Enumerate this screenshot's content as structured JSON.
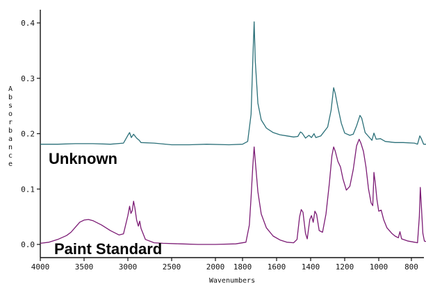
{
  "chart_data": {
    "type": "line",
    "xlabel": "Wavenumbers",
    "ylabel": "Absorbance",
    "xlim": [
      4000,
      700
    ],
    "ylim": [
      -0.03,
      0.43
    ],
    "x_ticks": [
      4000,
      3500,
      3000,
      2500,
      2000,
      1800,
      1600,
      1400,
      1200,
      1000,
      800
    ],
    "x_tick_labels": [
      "4000",
      "3500",
      "3000",
      "2500",
      "2000",
      "1800",
      "1600",
      "1400",
      "1200",
      "1000",
      "800"
    ],
    "y_ticks": [
      0.0,
      0.1,
      0.2,
      0.3,
      0.4
    ],
    "y_tick_labels": [
      "0.0",
      "0.1",
      "0.2",
      "0.3",
      "0.4"
    ],
    "grid": false,
    "annotations": [
      "Unknown",
      "Paint Standard"
    ],
    "series": [
      {
        "name": "Unknown",
        "color": "#2a6f78",
        "points": [
          [
            4000,
            0.181
          ],
          [
            3800,
            0.181
          ],
          [
            3600,
            0.182
          ],
          [
            3400,
            0.182
          ],
          [
            3200,
            0.181
          ],
          [
            3050,
            0.183
          ],
          [
            3000,
            0.197
          ],
          [
            2980,
            0.202
          ],
          [
            2960,
            0.193
          ],
          [
            2935,
            0.199
          ],
          [
            2900,
            0.192
          ],
          [
            2870,
            0.188
          ],
          [
            2850,
            0.184
          ],
          [
            2700,
            0.183
          ],
          [
            2500,
            0.18
          ],
          [
            2300,
            0.18
          ],
          [
            2100,
            0.181
          ],
          [
            1900,
            0.18
          ],
          [
            1800,
            0.181
          ],
          [
            1770,
            0.186
          ],
          [
            1750,
            0.235
          ],
          [
            1740,
            0.33
          ],
          [
            1732,
            0.402
          ],
          [
            1725,
            0.33
          ],
          [
            1710,
            0.255
          ],
          [
            1690,
            0.225
          ],
          [
            1660,
            0.21
          ],
          [
            1620,
            0.202
          ],
          [
            1580,
            0.198
          ],
          [
            1540,
            0.196
          ],
          [
            1500,
            0.194
          ],
          [
            1475,
            0.195
          ],
          [
            1460,
            0.203
          ],
          [
            1450,
            0.201
          ],
          [
            1430,
            0.192
          ],
          [
            1410,
            0.197
          ],
          [
            1395,
            0.193
          ],
          [
            1380,
            0.2
          ],
          [
            1370,
            0.193
          ],
          [
            1340,
            0.196
          ],
          [
            1300,
            0.212
          ],
          [
            1280,
            0.242
          ],
          [
            1265,
            0.283
          ],
          [
            1255,
            0.272
          ],
          [
            1240,
            0.248
          ],
          [
            1220,
            0.219
          ],
          [
            1200,
            0.201
          ],
          [
            1170,
            0.197
          ],
          [
            1150,
            0.199
          ],
          [
            1130,
            0.214
          ],
          [
            1110,
            0.233
          ],
          [
            1100,
            0.228
          ],
          [
            1080,
            0.202
          ],
          [
            1060,
            0.195
          ],
          [
            1040,
            0.188
          ],
          [
            1028,
            0.201
          ],
          [
            1015,
            0.19
          ],
          [
            990,
            0.191
          ],
          [
            960,
            0.186
          ],
          [
            900,
            0.184
          ],
          [
            850,
            0.184
          ],
          [
            780,
            0.183
          ],
          [
            760,
            0.181
          ],
          [
            745,
            0.196
          ],
          [
            735,
            0.191
          ],
          [
            720,
            0.181
          ],
          [
            700,
            0.181
          ]
        ]
      },
      {
        "name": "Paint Standard",
        "color": "#7b1a74",
        "points": [
          [
            4000,
            0.002
          ],
          [
            3900,
            0.004
          ],
          [
            3800,
            0.009
          ],
          [
            3700,
            0.016
          ],
          [
            3650,
            0.022
          ],
          [
            3600,
            0.031
          ],
          [
            3550,
            0.04
          ],
          [
            3500,
            0.044
          ],
          [
            3450,
            0.045
          ],
          [
            3400,
            0.043
          ],
          [
            3300,
            0.035
          ],
          [
            3200,
            0.025
          ],
          [
            3100,
            0.017
          ],
          [
            3050,
            0.019
          ],
          [
            3000,
            0.052
          ],
          [
            2980,
            0.069
          ],
          [
            2965,
            0.056
          ],
          [
            2950,
            0.061
          ],
          [
            2935,
            0.078
          ],
          [
            2920,
            0.066
          ],
          [
            2900,
            0.044
          ],
          [
            2880,
            0.033
          ],
          [
            2865,
            0.042
          ],
          [
            2850,
            0.029
          ],
          [
            2800,
            0.009
          ],
          [
            2700,
            0.003
          ],
          [
            2600,
            0.002
          ],
          [
            2400,
            0.001
          ],
          [
            2200,
            0.0
          ],
          [
            2000,
            0.0
          ],
          [
            1850,
            0.001
          ],
          [
            1780,
            0.004
          ],
          [
            1760,
            0.035
          ],
          [
            1750,
            0.085
          ],
          [
            1740,
            0.14
          ],
          [
            1732,
            0.176
          ],
          [
            1725,
            0.15
          ],
          [
            1710,
            0.095
          ],
          [
            1690,
            0.055
          ],
          [
            1660,
            0.03
          ],
          [
            1620,
            0.015
          ],
          [
            1580,
            0.008
          ],
          [
            1540,
            0.004
          ],
          [
            1500,
            0.003
          ],
          [
            1480,
            0.009
          ],
          [
            1465,
            0.05
          ],
          [
            1455,
            0.063
          ],
          [
            1445,
            0.058
          ],
          [
            1430,
            0.02
          ],
          [
            1420,
            0.01
          ],
          [
            1405,
            0.045
          ],
          [
            1395,
            0.052
          ],
          [
            1385,
            0.04
          ],
          [
            1375,
            0.06
          ],
          [
            1365,
            0.054
          ],
          [
            1350,
            0.025
          ],
          [
            1330,
            0.022
          ],
          [
            1310,
            0.055
          ],
          [
            1290,
            0.11
          ],
          [
            1275,
            0.16
          ],
          [
            1265,
            0.176
          ],
          [
            1255,
            0.168
          ],
          [
            1240,
            0.15
          ],
          [
            1225,
            0.14
          ],
          [
            1210,
            0.118
          ],
          [
            1190,
            0.098
          ],
          [
            1170,
            0.105
          ],
          [
            1150,
            0.135
          ],
          [
            1130,
            0.178
          ],
          [
            1115,
            0.19
          ],
          [
            1105,
            0.183
          ],
          [
            1090,
            0.168
          ],
          [
            1075,
            0.14
          ],
          [
            1060,
            0.1
          ],
          [
            1045,
            0.075
          ],
          [
            1035,
            0.07
          ],
          [
            1028,
            0.13
          ],
          [
            1020,
            0.11
          ],
          [
            1010,
            0.08
          ],
          [
            1000,
            0.06
          ],
          [
            985,
            0.062
          ],
          [
            970,
            0.045
          ],
          [
            950,
            0.03
          ],
          [
            920,
            0.02
          ],
          [
            900,
            0.015
          ],
          [
            880,
            0.012
          ],
          [
            870,
            0.023
          ],
          [
            860,
            0.01
          ],
          [
            820,
            0.006
          ],
          [
            780,
            0.004
          ],
          [
            760,
            0.003
          ],
          [
            748,
            0.05
          ],
          [
            742,
            0.103
          ],
          [
            735,
            0.07
          ],
          [
            725,
            0.02
          ],
          [
            715,
            0.006
          ],
          [
            700,
            0.005
          ]
        ]
      }
    ]
  },
  "labels": {
    "xlabel": "Wavenumbers",
    "ylabel": "Absorbance",
    "series1": "Unknown",
    "series2": "Paint Standard"
  },
  "colors": {
    "axis": "#111111",
    "unknown_line": "#2a6f78",
    "standard_line": "#7b1a74"
  }
}
